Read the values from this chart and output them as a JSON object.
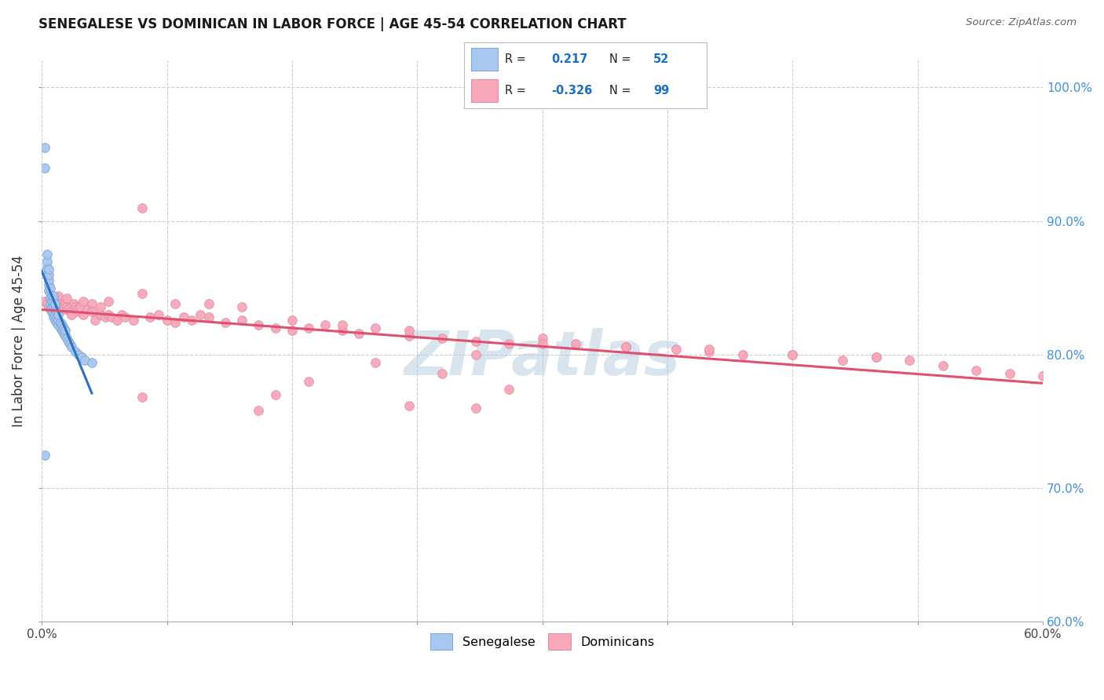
{
  "title": "SENEGALESE VS DOMINICAN IN LABOR FORCE | AGE 45-54 CORRELATION CHART",
  "source": "Source: ZipAtlas.com",
  "ylabel": "In Labor Force | Age 45-54",
  "x_min": 0.0,
  "x_max": 0.6,
  "y_min": 0.6,
  "y_max": 1.02,
  "x_ticks": [
    0.0,
    0.075,
    0.15,
    0.225,
    0.3,
    0.375,
    0.45,
    0.525,
    0.6
  ],
  "x_tick_labels_show": [
    "0.0%",
    "",
    "",
    "",
    "",
    "",
    "",
    "",
    "60.0%"
  ],
  "y_ticks": [
    0.6,
    0.7,
    0.8,
    0.9,
    1.0
  ],
  "y_tick_labels": [
    "60.0%",
    "70.0%",
    "80.0%",
    "90.0%",
    "100.0%"
  ],
  "senegalese_color": "#a8c8f0",
  "dominican_color": "#f8a8b8",
  "senegalese_R": 0.217,
  "senegalese_N": 52,
  "dominican_R": -0.326,
  "dominican_N": 99,
  "legend_color": "#1a6fc4",
  "background_color": "#ffffff",
  "grid_color": "#c8c8c8",
  "watermark": "ZIPatlas",
  "watermark_color": "#b8cee0",
  "senegalese_line_color": "#3070c0",
  "dominican_line_color": "#e05070",
  "diagonal_color": "#b0b0b0",
  "sen_x": [
    0.002,
    0.002,
    0.003,
    0.003,
    0.003,
    0.003,
    0.004,
    0.004,
    0.004,
    0.004,
    0.004,
    0.005,
    0.005,
    0.005,
    0.005,
    0.006,
    0.006,
    0.006,
    0.006,
    0.007,
    0.007,
    0.007,
    0.007,
    0.007,
    0.008,
    0.008,
    0.008,
    0.008,
    0.009,
    0.009,
    0.009,
    0.01,
    0.01,
    0.01,
    0.011,
    0.011,
    0.012,
    0.012,
    0.013,
    0.013,
    0.014,
    0.014,
    0.015,
    0.016,
    0.017,
    0.018,
    0.02,
    0.022,
    0.024,
    0.026,
    0.03,
    0.002
  ],
  "sen_y": [
    0.955,
    0.94,
    0.86,
    0.865,
    0.87,
    0.875,
    0.848,
    0.852,
    0.856,
    0.86,
    0.864,
    0.838,
    0.842,
    0.846,
    0.85,
    0.832,
    0.836,
    0.84,
    0.844,
    0.828,
    0.832,
    0.836,
    0.84,
    0.844,
    0.826,
    0.83,
    0.834,
    0.838,
    0.824,
    0.828,
    0.832,
    0.822,
    0.826,
    0.83,
    0.82,
    0.824,
    0.818,
    0.822,
    0.816,
    0.82,
    0.814,
    0.818,
    0.812,
    0.81,
    0.808,
    0.806,
    0.802,
    0.8,
    0.798,
    0.796,
    0.794,
    0.725
  ],
  "dom_x": [
    0.002,
    0.003,
    0.004,
    0.005,
    0.006,
    0.007,
    0.008,
    0.009,
    0.01,
    0.01,
    0.011,
    0.012,
    0.013,
    0.014,
    0.015,
    0.016,
    0.017,
    0.018,
    0.019,
    0.02,
    0.021,
    0.022,
    0.023,
    0.025,
    0.027,
    0.03,
    0.03,
    0.032,
    0.035,
    0.035,
    0.038,
    0.04,
    0.042,
    0.045,
    0.048,
    0.05,
    0.055,
    0.06,
    0.065,
    0.07,
    0.075,
    0.08,
    0.085,
    0.09,
    0.095,
    0.1,
    0.11,
    0.12,
    0.13,
    0.14,
    0.15,
    0.16,
    0.17,
    0.18,
    0.19,
    0.2,
    0.22,
    0.24,
    0.26,
    0.28,
    0.3,
    0.32,
    0.35,
    0.38,
    0.4,
    0.42,
    0.45,
    0.48,
    0.5,
    0.52,
    0.54,
    0.56,
    0.58,
    0.6,
    0.015,
    0.025,
    0.04,
    0.06,
    0.08,
    0.1,
    0.12,
    0.15,
    0.18,
    0.22,
    0.26,
    0.3,
    0.35,
    0.4,
    0.45,
    0.5,
    0.22,
    0.26,
    0.13,
    0.16,
    0.2,
    0.24,
    0.28,
    0.14,
    0.06
  ],
  "dom_y": [
    0.84,
    0.838,
    0.836,
    0.834,
    0.832,
    0.842,
    0.838,
    0.836,
    0.84,
    0.844,
    0.838,
    0.836,
    0.834,
    0.838,
    0.836,
    0.834,
    0.832,
    0.83,
    0.838,
    0.836,
    0.834,
    0.832,
    0.836,
    0.83,
    0.834,
    0.838,
    0.832,
    0.826,
    0.83,
    0.836,
    0.828,
    0.83,
    0.828,
    0.826,
    0.83,
    0.828,
    0.826,
    0.91,
    0.828,
    0.83,
    0.826,
    0.824,
    0.828,
    0.826,
    0.83,
    0.828,
    0.824,
    0.826,
    0.822,
    0.82,
    0.818,
    0.82,
    0.822,
    0.818,
    0.816,
    0.82,
    0.814,
    0.812,
    0.81,
    0.808,
    0.812,
    0.808,
    0.806,
    0.804,
    0.802,
    0.8,
    0.8,
    0.796,
    0.798,
    0.796,
    0.792,
    0.788,
    0.786,
    0.784,
    0.842,
    0.84,
    0.84,
    0.846,
    0.838,
    0.838,
    0.836,
    0.826,
    0.822,
    0.818,
    0.8,
    0.808,
    0.806,
    0.804,
    0.8,
    0.798,
    0.762,
    0.76,
    0.758,
    0.78,
    0.794,
    0.786,
    0.774,
    0.77,
    0.768
  ]
}
